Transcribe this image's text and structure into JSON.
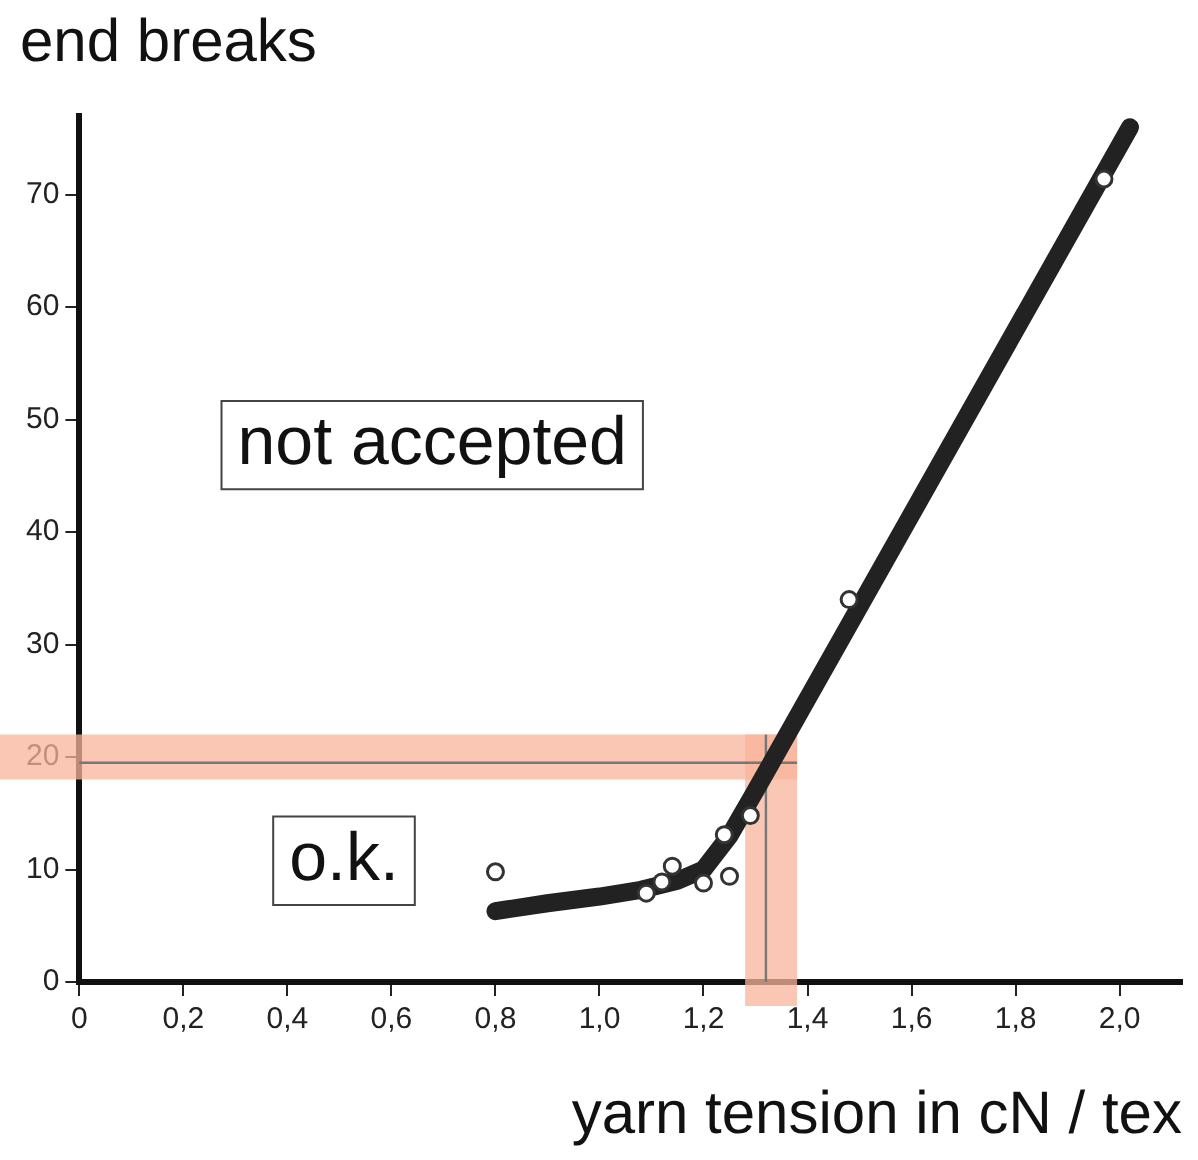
{
  "chart_data": {
    "type": "line",
    "title": "end breaks",
    "xlabel": "yarn tension in cN / tex",
    "annotations": [
      "not accepted",
      "o.k."
    ],
    "xlim": [
      0,
      2.12
    ],
    "ylim": [
      0,
      77
    ],
    "xticks": [
      0,
      {
        "value": 0.2,
        "label": "0,2"
      },
      {
        "value": 0.4,
        "label": "0,4"
      },
      {
        "value": 0.6,
        "label": "0,6"
      },
      {
        "value": 0.8,
        "label": "0,8"
      },
      {
        "value": 1.0,
        "label": "1,0"
      },
      {
        "value": 1.2,
        "label": "1,2"
      },
      {
        "value": 1.4,
        "label": "1,4"
      },
      {
        "value": 1.6,
        "label": "1,6"
      },
      {
        "value": 1.8,
        "label": "1,8"
      },
      {
        "value": 2.0,
        "label": "2,0"
      }
    ],
    "yticks": [
      0,
      10,
      20,
      30,
      40,
      50,
      60,
      70
    ],
    "grid": false,
    "legend": false,
    "series": [
      {
        "color": "#222222",
        "marker": "none",
        "x": [
          0.8,
          0.9,
          1.0,
          1.08,
          1.15,
          1.2,
          1.25,
          1.3,
          2.02
        ],
        "values": [
          6.3,
          7.0,
          7.6,
          8.2,
          9.0,
          10.0,
          13.0,
          17.0,
          76.0
        ]
      },
      {
        "type": "scatter",
        "color": "#333333",
        "marker": "circle",
        "x": [
          0.8,
          1.09,
          1.12,
          1.14,
          1.2,
          1.25,
          1.24,
          1.29,
          1.48,
          1.97
        ],
        "values": [
          9.8,
          7.9,
          8.9,
          10.3,
          8.8,
          9.4,
          13.1,
          14.8,
          34.0,
          71.4
        ]
      }
    ],
    "ref_lines": [
      {
        "axis": "y",
        "value": 19.5,
        "color": "#777777"
      },
      {
        "axis": "x",
        "value": 1.32,
        "color": "#777777"
      }
    ],
    "bands": [
      {
        "axis": "y",
        "from": 18,
        "to": 22,
        "color": "#f7b49a"
      },
      {
        "axis": "x",
        "from": 1.28,
        "to": 1.38,
        "color": "#f7b49a"
      }
    ]
  }
}
